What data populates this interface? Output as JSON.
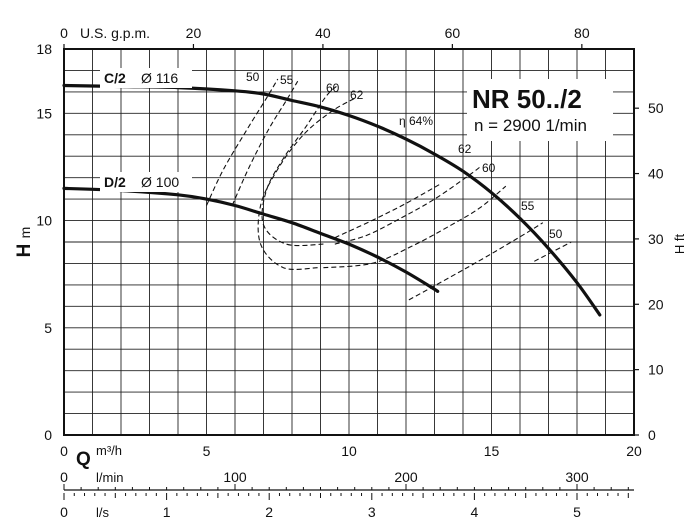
{
  "chart_data": {
    "type": "line",
    "title": "NR 50../2",
    "subtitle": "n = 2900 1/min",
    "axes": {
      "q_m3h": {
        "label": "Q",
        "unit": "m³/h",
        "range": [
          0,
          20
        ],
        "ticks": [
          0,
          5,
          10,
          15,
          20
        ]
      },
      "h_m": {
        "label": "H",
        "unit": "m",
        "range": [
          0,
          18
        ],
        "ticks": [
          0,
          5,
          10,
          15,
          18
        ]
      },
      "h_ft": {
        "label": "H ft",
        "ticks": [
          0,
          10,
          20,
          30,
          40,
          50
        ],
        "ticks_at_m": [
          0,
          3.048,
          6.096,
          9.144,
          12.192,
          15.24
        ]
      },
      "gpm": {
        "label": "U.S. g.p.m.",
        "ticks": [
          0,
          20,
          40,
          60,
          80
        ],
        "ticks_at_m3h": [
          0,
          4.542,
          9.085,
          13.627,
          18.17
        ]
      },
      "lmin": {
        "label": "l/min",
        "ticks": [
          0,
          100,
          200,
          300
        ],
        "ticks_at_m3h": [
          0,
          6,
          12,
          18
        ]
      },
      "ls": {
        "label": "l/s",
        "ticks": [
          0,
          1,
          2,
          3,
          4,
          5
        ],
        "ticks_at_m3h": [
          0,
          3.6,
          7.2,
          10.8,
          14.4,
          18
        ]
      }
    },
    "grid": true,
    "series": [
      {
        "name": "C/2",
        "diameter": "Ø 116",
        "style": "solid",
        "points": [
          [
            0,
            16.3
          ],
          [
            2,
            16.25
          ],
          [
            4,
            16.2
          ],
          [
            6,
            16.05
          ],
          [
            7,
            15.9
          ],
          [
            8,
            15.6
          ],
          [
            9,
            15.3
          ],
          [
            10,
            14.9
          ],
          [
            11,
            14.4
          ],
          [
            12,
            13.8
          ],
          [
            13,
            13.1
          ],
          [
            14,
            12.3
          ],
          [
            15,
            11.3
          ],
          [
            16,
            10.1
          ],
          [
            17,
            8.7
          ],
          [
            18,
            7.1
          ],
          [
            18.8,
            5.6
          ]
        ]
      },
      {
        "name": "D/2",
        "diameter": "Ø 100",
        "style": "solid",
        "points": [
          [
            0,
            11.5
          ],
          [
            2,
            11.4
          ],
          [
            4,
            11.2
          ],
          [
            5,
            11.0
          ],
          [
            6,
            10.7
          ],
          [
            7,
            10.3
          ],
          [
            8,
            9.9
          ],
          [
            9,
            9.4
          ],
          [
            10,
            8.9
          ],
          [
            11,
            8.3
          ],
          [
            12,
            7.6
          ],
          [
            13,
            6.8
          ],
          [
            13.1,
            6.7
          ]
        ]
      }
    ],
    "efficiency_curves": [
      {
        "label": "50",
        "points": [
          [
            5,
            10.7
          ],
          [
            5.6,
            12.4
          ],
          [
            6.4,
            14.2
          ],
          [
            7.1,
            15.7
          ],
          [
            7.5,
            16.6
          ]
        ]
      },
      {
        "label": "55",
        "points": [
          [
            5.9,
            10.7
          ],
          [
            6.5,
            12.5
          ],
          [
            7.2,
            14.3
          ],
          [
            7.8,
            15.6
          ],
          [
            8.2,
            16.5
          ]
        ]
      },
      {
        "label": "60",
        "points": [
          [
            9.1,
            8.9
          ],
          [
            7.8,
            8.9
          ],
          [
            7.0,
            9.8
          ],
          [
            7.1,
            11.4
          ],
          [
            7.7,
            12.9
          ],
          [
            8.5,
            14.4
          ],
          [
            9.2,
            15.8
          ],
          [
            9.6,
            16.3
          ]
        ]
      },
      {
        "label": "62",
        "points": [
          [
            8.9,
            7.8
          ],
          [
            7.7,
            7.8
          ],
          [
            6.9,
            8.9
          ],
          [
            6.9,
            10.7
          ],
          [
            7.5,
            12.4
          ],
          [
            8.4,
            14.0
          ],
          [
            9.4,
            15.1
          ],
          [
            10.2,
            15.7
          ]
        ]
      },
      {
        "label": "η 64%",
        "points": [
          [
            9.5,
            9.2
          ],
          [
            10.8,
            10.0
          ],
          [
            12.0,
            10.8
          ],
          [
            13.2,
            11.7
          ]
        ]
      },
      {
        "label": "62",
        "points": [
          [
            9.5,
            8.9
          ],
          [
            10.6,
            9.3
          ],
          [
            11.8,
            10.1
          ],
          [
            13.0,
            11.0
          ],
          [
            14.2,
            12.1
          ],
          [
            14.6,
            12.5
          ]
        ]
      },
      {
        "label": "60",
        "points": [
          [
            9.1,
            7.8
          ],
          [
            10.8,
            8.0
          ],
          [
            12.2,
            8.8
          ],
          [
            13.6,
            9.8
          ],
          [
            14.6,
            10.6
          ],
          [
            15.5,
            11.6
          ]
        ]
      },
      {
        "label": "55",
        "points": [
          [
            12.1,
            6.3
          ],
          [
            13.6,
            7.4
          ],
          [
            14.8,
            8.3
          ],
          [
            16.2,
            9.4
          ],
          [
            16.8,
            9.9
          ]
        ]
      },
      {
        "label": "50",
        "points": [
          [
            16.5,
            8.1
          ],
          [
            17.8,
            9.0
          ]
        ]
      }
    ],
    "labels": {
      "c2": "C/2",
      "c2_dia": "Ø 116",
      "d2": "D/2",
      "d2_dia": "Ø 100",
      "eff": [
        "50",
        "55",
        "60",
        "62",
        "η 64%",
        "62",
        "60",
        "55",
        "50"
      ]
    }
  }
}
